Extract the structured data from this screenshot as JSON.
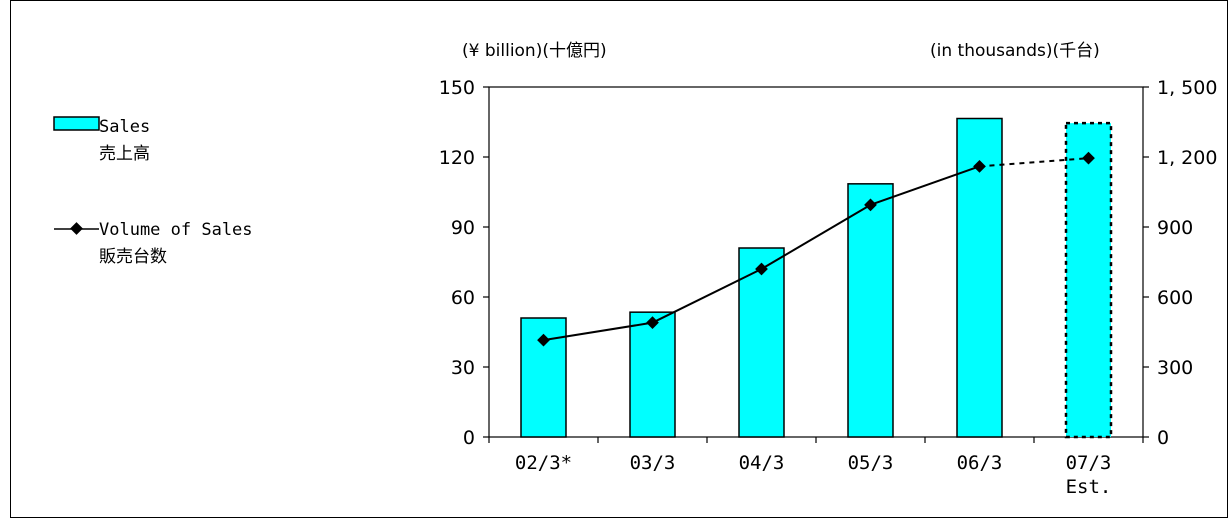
{
  "chart_data": {
    "type": "bar",
    "categories": [
      "02/3*",
      "03/3",
      "04/3",
      "05/3",
      "06/3",
      "07/3"
    ],
    "category_sublabels": [
      "",
      "",
      "",
      "",
      "",
      "Est."
    ],
    "series": [
      {
        "name": "Sales 売上高",
        "name_en": "Sales",
        "name_ja": "売上高",
        "kind": "bar",
        "axis": "left",
        "values": [
          51,
          53.5,
          81,
          108.5,
          136.5,
          134.5
        ],
        "estimated": [
          false,
          false,
          false,
          false,
          false,
          true
        ],
        "color": "#00ffff"
      },
      {
        "name": "Volume of Sales 販売台数",
        "name_en": "Volume of Sales",
        "name_ja": "販売台数",
        "kind": "line",
        "axis": "right",
        "values": [
          415,
          490,
          720,
          995,
          1160,
          1195
        ],
        "estimated": [
          false,
          false,
          false,
          false,
          false,
          true
        ],
        "color": "#000000"
      }
    ],
    "y_left": {
      "label": "(¥ billion)(十億円)",
      "ylim": [
        0,
        150
      ],
      "ticks": [
        "0",
        "30",
        "60",
        "90",
        "120",
        "150"
      ],
      "tick_values": [
        0,
        30,
        60,
        90,
        120,
        150
      ]
    },
    "y_right": {
      "label": "(in thousands)(千台)",
      "ylim": [
        0,
        1500
      ],
      "ticks": [
        "0",
        "300",
        "600",
        "900",
        "1, 200",
        "1, 500"
      ],
      "tick_values": [
        0,
        300,
        600,
        900,
        1200,
        1500
      ]
    },
    "grid": false,
    "legend": "left"
  }
}
